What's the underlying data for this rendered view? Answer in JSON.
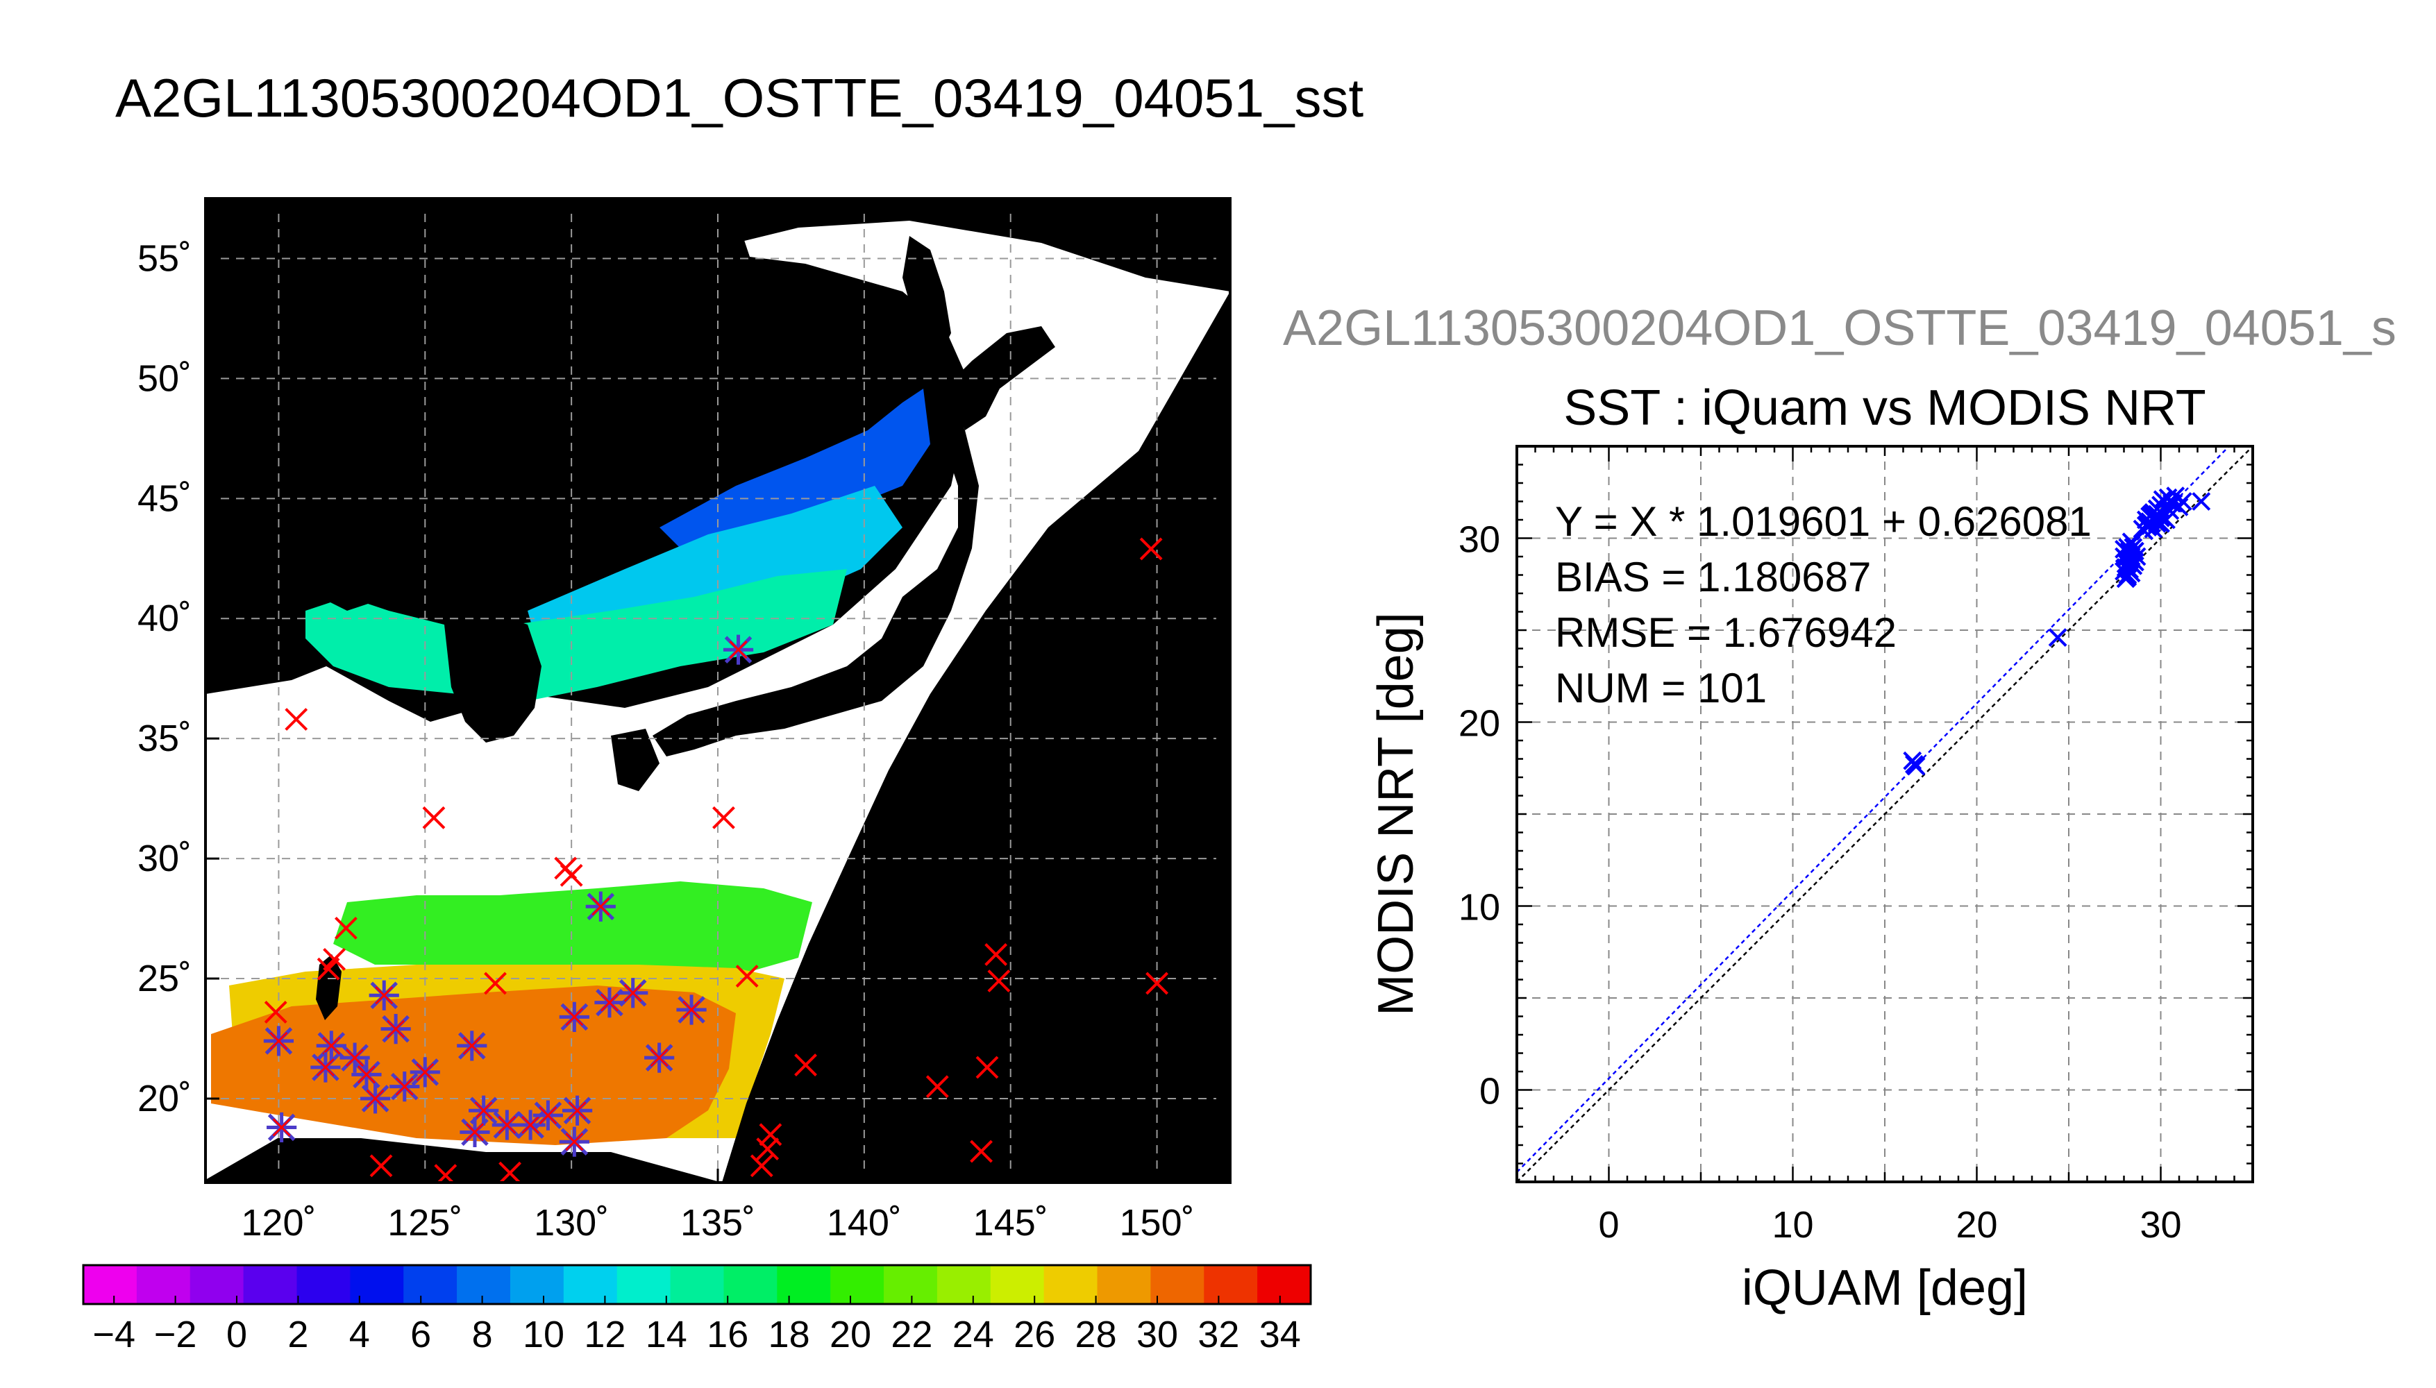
{
  "page_title": "A2GL11305300204OD1_OSTTE_03419_04051_sst",
  "colors": {
    "land": "#000000",
    "cloud_mask": "#ffffff",
    "insitu_marker_red": "#ff0000",
    "insitu_marker_blue": "#4b3bc9",
    "scatter_points": "#0000ff",
    "fit_line": "#0000ff",
    "identity_line": "#000000"
  },
  "chart_data": [
    {
      "type": "heatmap",
      "title": "",
      "xlim": [
        117.5,
        152.5
      ],
      "ylim": [
        16.5,
        57.5
      ],
      "grid": true,
      "x_ticks": [
        120,
        125,
        130,
        135,
        140,
        145,
        150
      ],
      "x_tick_labels": [
        "120˚",
        "125˚",
        "130˚",
        "135˚",
        "140˚",
        "145˚",
        "150˚"
      ],
      "y_ticks": [
        20,
        25,
        30,
        35,
        40,
        45,
        50,
        55
      ],
      "y_tick_labels": [
        "20˚",
        "25˚",
        "30˚",
        "35˚",
        "40˚",
        "45˚",
        "50˚",
        "55˚"
      ],
      "colorbar": {
        "min": -5,
        "max": 35,
        "tick_labels": [
          "−4",
          "−2",
          "0",
          "2",
          "4",
          "6",
          "8",
          "10",
          "12",
          "14",
          "16",
          "18",
          "20",
          "22",
          "24",
          "26",
          "28",
          "30",
          "32",
          "34"
        ],
        "tick_values": [
          -4,
          -2,
          0,
          2,
          4,
          6,
          8,
          10,
          12,
          14,
          16,
          18,
          20,
          22,
          24,
          26,
          28,
          30,
          32,
          34
        ],
        "colors": [
          "#ee00ee",
          "#c000ee",
          "#9000ee",
          "#5a00ee",
          "#2c00ee",
          "#0010ee",
          "#0040ee",
          "#0070ee",
          "#00a0ee",
          "#00d0ee",
          "#00eecc",
          "#00ee99",
          "#00ee66",
          "#00ee22",
          "#33ee00",
          "#66ee00",
          "#99ee00",
          "#ccee00",
          "#eecc00",
          "#ee9900",
          "#ee6600",
          "#ee3300",
          "#ee0000"
        ]
      },
      "markers_red": [
        [
          120.6,
          35.8
        ],
        [
          125.3,
          31.7
        ],
        [
          135.2,
          31.7
        ],
        [
          129.8,
          29.6
        ],
        [
          130.0,
          29.3
        ],
        [
          122.3,
          27.1
        ],
        [
          121.9,
          25.8
        ],
        [
          121.7,
          25.4
        ],
        [
          127.4,
          24.8
        ],
        [
          136.0,
          25.1
        ],
        [
          144.5,
          26.0
        ],
        [
          144.6,
          24.9
        ],
        [
          150.0,
          24.8
        ],
        [
          149.8,
          42.9
        ],
        [
          138.0,
          21.4
        ],
        [
          142.5,
          20.5
        ],
        [
          144.2,
          21.3
        ],
        [
          144.0,
          17.8
        ],
        [
          136.8,
          18.5
        ],
        [
          136.7,
          17.9
        ],
        [
          136.5,
          17.2
        ],
        [
          123.5,
          17.2
        ],
        [
          125.7,
          16.8
        ],
        [
          127.9,
          16.9
        ],
        [
          119.9,
          23.6
        ]
      ],
      "markers_blue": [
        [
          135.7,
          38.7
        ],
        [
          131.0,
          28.0
        ],
        [
          120.0,
          22.4
        ],
        [
          120.1,
          18.8
        ],
        [
          121.8,
          22.2
        ],
        [
          121.6,
          21.3
        ],
        [
          122.6,
          21.7
        ],
        [
          123.0,
          21.0
        ],
        [
          123.3,
          20.0
        ],
        [
          123.6,
          24.3
        ],
        [
          124.0,
          22.9
        ],
        [
          124.3,
          20.5
        ],
        [
          125.0,
          21.1
        ],
        [
          126.6,
          22.2
        ],
        [
          127.0,
          19.5
        ],
        [
          126.7,
          18.6
        ],
        [
          127.8,
          18.9
        ],
        [
          128.6,
          18.9
        ],
        [
          129.2,
          19.3
        ],
        [
          130.2,
          19.5
        ],
        [
          130.1,
          18.2
        ],
        [
          130.1,
          23.4
        ],
        [
          132.1,
          24.4
        ],
        [
          133.0,
          21.7
        ],
        [
          134.1,
          23.7
        ],
        [
          131.3,
          24.0
        ]
      ]
    },
    {
      "type": "scatter",
      "header": "A2GL11305300204OD1_OSTTE_03419_04051_s",
      "title": "SST : iQuam vs MODIS NRT",
      "xlabel": "iQUAM [deg]",
      "ylabel": "MODIS NRT [deg]",
      "xlim": [
        -5,
        35
      ],
      "ylim": [
        -5,
        35
      ],
      "x_ticks": [
        0,
        10,
        20,
        30
      ],
      "y_ticks": [
        0,
        10,
        20,
        30
      ],
      "grid": true,
      "stats": [
        "Y = X * 1.019601 + 0.626081",
        "BIAS = 1.180687",
        "RMSE = 1.676942",
        "NUM = 101"
      ],
      "fit": {
        "slope": 1.019601,
        "intercept": 0.626081
      },
      "x": [
        16.6,
        16.5,
        16.7,
        24.4,
        28.0,
        28.1,
        28.2,
        28.3,
        28.4,
        28.5,
        28.1,
        28.2,
        28.3,
        28.4,
        28.0,
        28.2,
        28.4,
        28.6,
        28.1,
        28.3,
        28.5,
        28.2,
        28.4,
        28.0,
        28.3,
        28.6,
        28.5,
        28.7,
        28.3,
        28.4,
        29.0,
        29.2,
        29.4,
        29.6,
        29.8,
        29.1,
        29.3,
        29.5,
        29.7,
        29.9,
        29.2,
        29.4,
        29.6,
        29.8,
        30.0,
        30.2,
        30.4,
        30.6,
        30.0,
        30.3,
        30.5,
        30.1,
        30.4,
        30.7,
        31.0,
        31.2,
        30.8,
        32.2,
        29.6,
        29.8,
        30.0,
        29.3,
        29.5
      ],
      "y": [
        17.7,
        17.9,
        17.6,
        24.6,
        28.2,
        28.4,
        28.6,
        28.8,
        29.0,
        29.2,
        27.8,
        28.0,
        28.3,
        28.6,
        29.4,
        29.5,
        29.8,
        29.3,
        28.9,
        29.1,
        28.5,
        27.9,
        28.1,
        29.0,
        29.3,
        28.7,
        29.5,
        29.0,
        28.3,
        28.9,
        30.5,
        30.7,
        30.9,
        31.1,
        31.3,
        30.4,
        30.6,
        30.8,
        31.0,
        31.2,
        31.0,
        31.2,
        31.4,
        31.6,
        31.8,
        32.0,
        31.6,
        31.9,
        30.8,
        31.0,
        31.5,
        32.1,
        32.2,
        31.9,
        31.7,
        32.0,
        32.3,
        32.0,
        30.5,
        30.8,
        31.1,
        30.8,
        31.3
      ]
    }
  ]
}
